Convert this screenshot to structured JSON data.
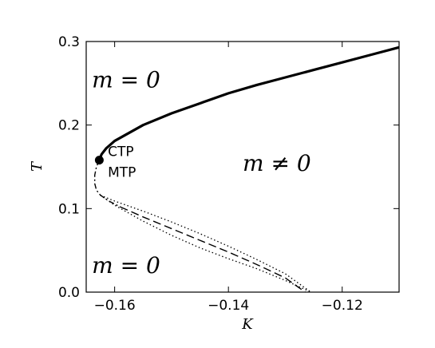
{
  "chart_data": {
    "type": "line",
    "xlabel": "K",
    "ylabel": "T",
    "xlim": [
      -0.165,
      -0.11
    ],
    "ylim": [
      0.0,
      0.3
    ],
    "x_ticks": [
      -0.16,
      -0.14,
      -0.12
    ],
    "x_tick_labels": [
      "−0.16",
      "−0.14",
      "−0.12"
    ],
    "y_ticks": [
      0.0,
      0.1,
      0.2,
      0.3
    ],
    "y_tick_labels": [
      "0.0",
      "0.1",
      "0.2",
      "0.3"
    ],
    "grid": false,
    "series": [
      {
        "style": "solid-thick",
        "points": [
          [
            -0.1627,
            0.158
          ],
          [
            -0.1623,
            0.165
          ],
          [
            -0.1615,
            0.172
          ],
          [
            -0.16,
            0.181
          ],
          [
            -0.155,
            0.2
          ],
          [
            -0.15,
            0.214
          ],
          [
            -0.145,
            0.226
          ],
          [
            -0.14,
            0.238
          ],
          [
            -0.135,
            0.248
          ],
          [
            -0.13,
            0.257
          ],
          [
            -0.125,
            0.266
          ],
          [
            -0.12,
            0.275
          ],
          [
            -0.115,
            0.284
          ],
          [
            -0.11,
            0.293
          ]
        ]
      },
      {
        "style": "dashdot",
        "points": [
          [
            -0.1627,
            0.158
          ],
          [
            -0.1632,
            0.15
          ],
          [
            -0.1635,
            0.14
          ],
          [
            -0.1635,
            0.13
          ],
          [
            -0.1632,
            0.122
          ],
          [
            -0.1625,
            0.116
          ],
          [
            -0.161,
            0.109
          ],
          [
            -0.159,
            0.102
          ]
        ]
      },
      {
        "style": "dashed",
        "points": [
          [
            -0.159,
            0.102
          ],
          [
            -0.155,
            0.09
          ],
          [
            -0.15,
            0.076
          ],
          [
            -0.145,
            0.062
          ],
          [
            -0.14,
            0.048
          ],
          [
            -0.135,
            0.033
          ],
          [
            -0.13,
            0.017
          ],
          [
            -0.1265,
            0.0
          ]
        ]
      },
      {
        "style": "dotted",
        "points": [
          [
            -0.1625,
            0.116
          ],
          [
            -0.16,
            0.109
          ],
          [
            -0.155,
            0.097
          ],
          [
            -0.15,
            0.084
          ],
          [
            -0.145,
            0.07
          ],
          [
            -0.14,
            0.055
          ],
          [
            -0.135,
            0.039
          ],
          [
            -0.13,
            0.022
          ],
          [
            -0.1255,
            0.0
          ]
        ]
      },
      {
        "style": "dotted",
        "points": [
          [
            -0.1625,
            0.116
          ],
          [
            -0.16,
            0.104
          ],
          [
            -0.155,
            0.085
          ],
          [
            -0.15,
            0.068
          ],
          [
            -0.145,
            0.053
          ],
          [
            -0.14,
            0.04
          ],
          [
            -0.135,
            0.028
          ],
          [
            -0.13,
            0.014
          ],
          [
            -0.1255,
            0.0
          ]
        ]
      }
    ],
    "markers": [
      {
        "x": -0.1627,
        "y": 0.158,
        "label": "CTP"
      }
    ],
    "annotations": [
      {
        "text": "CTP",
        "x": -0.1612,
        "y": 0.163,
        "kind": "point-label"
      },
      {
        "text": "MTP",
        "x": -0.1612,
        "y": 0.138,
        "kind": "point-label"
      },
      {
        "text": "m = 0",
        "x": -0.164,
        "y": 0.245,
        "kind": "region"
      },
      {
        "text": "m = 0",
        "x": -0.164,
        "y": 0.023,
        "kind": "region"
      },
      {
        "text": "m ≠ 0",
        "x": -0.1375,
        "y": 0.145,
        "kind": "region"
      }
    ]
  }
}
